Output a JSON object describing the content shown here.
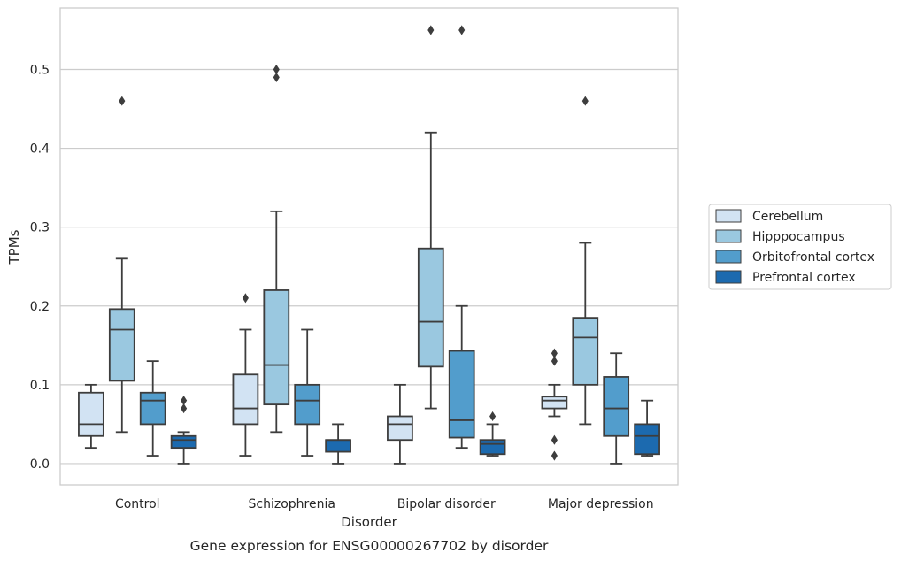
{
  "chart_data": {
    "type": "box",
    "title": "",
    "caption": "Gene expression for ENSG00000267702 by disorder",
    "xlabel": "Disorder",
    "ylabel": "TPMs",
    "ylim": [
      -0.027,
      0.578
    ],
    "yticks": [
      0.0,
      0.1,
      0.2,
      0.3,
      0.4,
      0.5
    ],
    "ytick_labels": [
      "0.0",
      "0.1",
      "0.2",
      "0.3",
      "0.4",
      "0.5"
    ],
    "grid": "horizontal",
    "legend_position": "right",
    "categories": [
      "Control",
      "Schizophrenia",
      "Bipolar disorder",
      "Major depression"
    ],
    "series": [
      {
        "name": "Cerebellum",
        "color": "#d2e3f3",
        "boxes": [
          {
            "whisker_low": 0.02,
            "q1": 0.035,
            "median": 0.05,
            "q3": 0.09,
            "whisker_high": 0.1,
            "outliers": []
          },
          {
            "whisker_low": 0.01,
            "q1": 0.05,
            "median": 0.07,
            "q3": 0.113,
            "whisker_high": 0.17,
            "outliers": [
              0.21
            ]
          },
          {
            "whisker_low": 0.0,
            "q1": 0.03,
            "median": 0.05,
            "q3": 0.06,
            "whisker_high": 0.1,
            "outliers": []
          },
          {
            "whisker_low": 0.06,
            "q1": 0.07,
            "median": 0.08,
            "q3": 0.085,
            "whisker_high": 0.1,
            "outliers": [
              0.14,
              0.13,
              0.03,
              0.01
            ]
          }
        ]
      },
      {
        "name": "Hipppocampus",
        "color": "#9ac8e0",
        "boxes": [
          {
            "whisker_low": 0.04,
            "q1": 0.105,
            "median": 0.17,
            "q3": 0.196,
            "whisker_high": 0.26,
            "outliers": [
              0.46
            ]
          },
          {
            "whisker_low": 0.04,
            "q1": 0.075,
            "median": 0.125,
            "q3": 0.22,
            "whisker_high": 0.32,
            "outliers": [
              0.5,
              0.49
            ]
          },
          {
            "whisker_low": 0.07,
            "q1": 0.123,
            "median": 0.18,
            "q3": 0.273,
            "whisker_high": 0.42,
            "outliers": [
              0.55
            ]
          },
          {
            "whisker_low": 0.05,
            "q1": 0.1,
            "median": 0.16,
            "q3": 0.185,
            "whisker_high": 0.28,
            "outliers": [
              0.46
            ]
          }
        ]
      },
      {
        "name": "Orbitofrontal cortex",
        "color": "#529dcc",
        "boxes": [
          {
            "whisker_low": 0.01,
            "q1": 0.05,
            "median": 0.08,
            "q3": 0.09,
            "whisker_high": 0.13,
            "outliers": []
          },
          {
            "whisker_low": 0.01,
            "q1": 0.05,
            "median": 0.08,
            "q3": 0.1,
            "whisker_high": 0.17,
            "outliers": []
          },
          {
            "whisker_low": 0.02,
            "q1": 0.033,
            "median": 0.055,
            "q3": 0.143,
            "whisker_high": 0.2,
            "outliers": [
              0.55
            ]
          },
          {
            "whisker_low": 0.0,
            "q1": 0.035,
            "median": 0.07,
            "q3": 0.11,
            "whisker_high": 0.14,
            "outliers": []
          }
        ]
      },
      {
        "name": "Prefrontal cortex",
        "color": "#1c6aaf",
        "boxes": [
          {
            "whisker_low": 0.0,
            "q1": 0.02,
            "median": 0.03,
            "q3": 0.035,
            "whisker_high": 0.04,
            "outliers": [
              0.08,
              0.07
            ]
          },
          {
            "whisker_low": 0.0,
            "q1": 0.015,
            "median": 0.03,
            "q3": 0.03,
            "whisker_high": 0.05,
            "outliers": []
          },
          {
            "whisker_low": 0.01,
            "q1": 0.012,
            "median": 0.025,
            "q3": 0.03,
            "whisker_high": 0.05,
            "outliers": [
              0.06
            ]
          },
          {
            "whisker_low": 0.01,
            "q1": 0.012,
            "median": 0.035,
            "q3": 0.05,
            "whisker_high": 0.08,
            "outliers": []
          }
        ]
      }
    ]
  }
}
